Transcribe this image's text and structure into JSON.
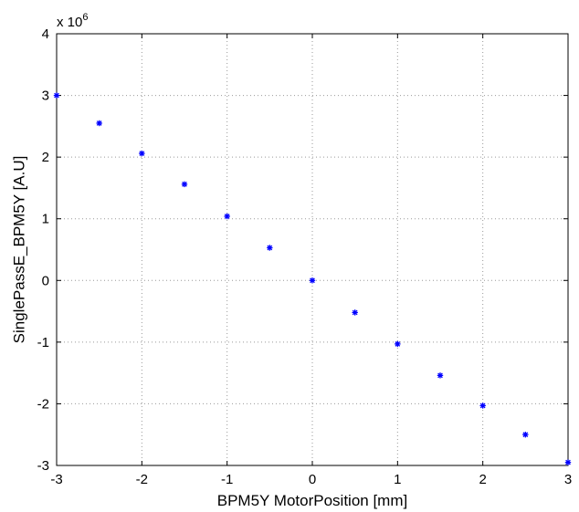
{
  "chart_data": {
    "type": "scatter",
    "xlabel": "BPM5Y MotorPosition [mm]",
    "ylabel": "SinglePassE_BPM5Y [A.U]",
    "exponent_base": "x 10",
    "exponent_power": "6",
    "xlim": [
      -3,
      3
    ],
    "ylim": [
      -3,
      4
    ],
    "xticks": [
      -3,
      -2,
      -1,
      0,
      1,
      2,
      3
    ],
    "yticks": [
      -3,
      -2,
      -1,
      0,
      1,
      2,
      3,
      4
    ],
    "grid": true,
    "marker": "asterisk",
    "marker_color": "#0000ff",
    "series": [
      {
        "x": [
          -3,
          -2.5,
          -2,
          -1.5,
          -1,
          -0.5,
          0,
          0.5,
          1,
          1.5,
          2,
          2.5,
          3
        ],
        "y": [
          3.0,
          2.55,
          2.06,
          1.56,
          1.04,
          0.53,
          0.0,
          -0.52,
          -1.03,
          -1.54,
          -2.03,
          -2.5,
          -2.95
        ]
      }
    ]
  }
}
